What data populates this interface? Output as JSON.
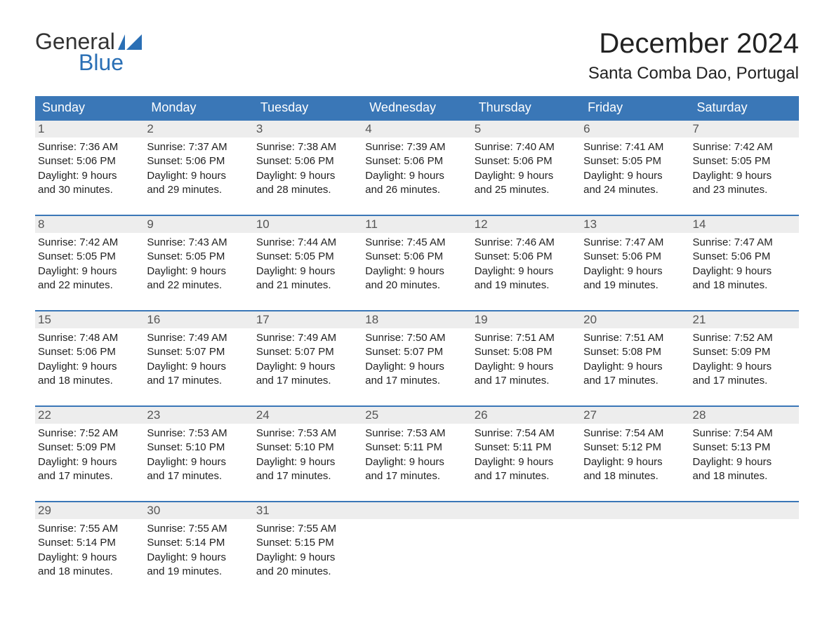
{
  "logo": {
    "word1": "General",
    "word2": "Blue",
    "icon_color": "#2a6fb5",
    "text1_color": "#333333",
    "text2_color": "#2a6fb5"
  },
  "title": "December 2024",
  "location": "Santa Comba Dao, Portugal",
  "header_bg": "#3a77b7",
  "header_fg": "#ffffff",
  "daynum_bg": "#ededed",
  "daynum_fg": "#555555",
  "rule_color": "#3a77b7",
  "body_text_color": "#222222",
  "background_color": "#ffffff",
  "title_fontsize": 40,
  "location_fontsize": 24,
  "header_fontsize": 18,
  "body_fontsize": 15,
  "columns": [
    "Sunday",
    "Monday",
    "Tuesday",
    "Wednesday",
    "Thursday",
    "Friday",
    "Saturday"
  ],
  "weeks": [
    [
      {
        "n": "1",
        "sr": "Sunrise: 7:36 AM",
        "ss": "Sunset: 5:06 PM",
        "d1": "Daylight: 9 hours",
        "d2": "and 30 minutes."
      },
      {
        "n": "2",
        "sr": "Sunrise: 7:37 AM",
        "ss": "Sunset: 5:06 PM",
        "d1": "Daylight: 9 hours",
        "d2": "and 29 minutes."
      },
      {
        "n": "3",
        "sr": "Sunrise: 7:38 AM",
        "ss": "Sunset: 5:06 PM",
        "d1": "Daylight: 9 hours",
        "d2": "and 28 minutes."
      },
      {
        "n": "4",
        "sr": "Sunrise: 7:39 AM",
        "ss": "Sunset: 5:06 PM",
        "d1": "Daylight: 9 hours",
        "d2": "and 26 minutes."
      },
      {
        "n": "5",
        "sr": "Sunrise: 7:40 AM",
        "ss": "Sunset: 5:06 PM",
        "d1": "Daylight: 9 hours",
        "d2": "and 25 minutes."
      },
      {
        "n": "6",
        "sr": "Sunrise: 7:41 AM",
        "ss": "Sunset: 5:05 PM",
        "d1": "Daylight: 9 hours",
        "d2": "and 24 minutes."
      },
      {
        "n": "7",
        "sr": "Sunrise: 7:42 AM",
        "ss": "Sunset: 5:05 PM",
        "d1": "Daylight: 9 hours",
        "d2": "and 23 minutes."
      }
    ],
    [
      {
        "n": "8",
        "sr": "Sunrise: 7:42 AM",
        "ss": "Sunset: 5:05 PM",
        "d1": "Daylight: 9 hours",
        "d2": "and 22 minutes."
      },
      {
        "n": "9",
        "sr": "Sunrise: 7:43 AM",
        "ss": "Sunset: 5:05 PM",
        "d1": "Daylight: 9 hours",
        "d2": "and 22 minutes."
      },
      {
        "n": "10",
        "sr": "Sunrise: 7:44 AM",
        "ss": "Sunset: 5:05 PM",
        "d1": "Daylight: 9 hours",
        "d2": "and 21 minutes."
      },
      {
        "n": "11",
        "sr": "Sunrise: 7:45 AM",
        "ss": "Sunset: 5:06 PM",
        "d1": "Daylight: 9 hours",
        "d2": "and 20 minutes."
      },
      {
        "n": "12",
        "sr": "Sunrise: 7:46 AM",
        "ss": "Sunset: 5:06 PM",
        "d1": "Daylight: 9 hours",
        "d2": "and 19 minutes."
      },
      {
        "n": "13",
        "sr": "Sunrise: 7:47 AM",
        "ss": "Sunset: 5:06 PM",
        "d1": "Daylight: 9 hours",
        "d2": "and 19 minutes."
      },
      {
        "n": "14",
        "sr": "Sunrise: 7:47 AM",
        "ss": "Sunset: 5:06 PM",
        "d1": "Daylight: 9 hours",
        "d2": "and 18 minutes."
      }
    ],
    [
      {
        "n": "15",
        "sr": "Sunrise: 7:48 AM",
        "ss": "Sunset: 5:06 PM",
        "d1": "Daylight: 9 hours",
        "d2": "and 18 minutes."
      },
      {
        "n": "16",
        "sr": "Sunrise: 7:49 AM",
        "ss": "Sunset: 5:07 PM",
        "d1": "Daylight: 9 hours",
        "d2": "and 17 minutes."
      },
      {
        "n": "17",
        "sr": "Sunrise: 7:49 AM",
        "ss": "Sunset: 5:07 PM",
        "d1": "Daylight: 9 hours",
        "d2": "and 17 minutes."
      },
      {
        "n": "18",
        "sr": "Sunrise: 7:50 AM",
        "ss": "Sunset: 5:07 PM",
        "d1": "Daylight: 9 hours",
        "d2": "and 17 minutes."
      },
      {
        "n": "19",
        "sr": "Sunrise: 7:51 AM",
        "ss": "Sunset: 5:08 PM",
        "d1": "Daylight: 9 hours",
        "d2": "and 17 minutes."
      },
      {
        "n": "20",
        "sr": "Sunrise: 7:51 AM",
        "ss": "Sunset: 5:08 PM",
        "d1": "Daylight: 9 hours",
        "d2": "and 17 minutes."
      },
      {
        "n": "21",
        "sr": "Sunrise: 7:52 AM",
        "ss": "Sunset: 5:09 PM",
        "d1": "Daylight: 9 hours",
        "d2": "and 17 minutes."
      }
    ],
    [
      {
        "n": "22",
        "sr": "Sunrise: 7:52 AM",
        "ss": "Sunset: 5:09 PM",
        "d1": "Daylight: 9 hours",
        "d2": "and 17 minutes."
      },
      {
        "n": "23",
        "sr": "Sunrise: 7:53 AM",
        "ss": "Sunset: 5:10 PM",
        "d1": "Daylight: 9 hours",
        "d2": "and 17 minutes."
      },
      {
        "n": "24",
        "sr": "Sunrise: 7:53 AM",
        "ss": "Sunset: 5:10 PM",
        "d1": "Daylight: 9 hours",
        "d2": "and 17 minutes."
      },
      {
        "n": "25",
        "sr": "Sunrise: 7:53 AM",
        "ss": "Sunset: 5:11 PM",
        "d1": "Daylight: 9 hours",
        "d2": "and 17 minutes."
      },
      {
        "n": "26",
        "sr": "Sunrise: 7:54 AM",
        "ss": "Sunset: 5:11 PM",
        "d1": "Daylight: 9 hours",
        "d2": "and 17 minutes."
      },
      {
        "n": "27",
        "sr": "Sunrise: 7:54 AM",
        "ss": "Sunset: 5:12 PM",
        "d1": "Daylight: 9 hours",
        "d2": "and 18 minutes."
      },
      {
        "n": "28",
        "sr": "Sunrise: 7:54 AM",
        "ss": "Sunset: 5:13 PM",
        "d1": "Daylight: 9 hours",
        "d2": "and 18 minutes."
      }
    ],
    [
      {
        "n": "29",
        "sr": "Sunrise: 7:55 AM",
        "ss": "Sunset: 5:14 PM",
        "d1": "Daylight: 9 hours",
        "d2": "and 18 minutes."
      },
      {
        "n": "30",
        "sr": "Sunrise: 7:55 AM",
        "ss": "Sunset: 5:14 PM",
        "d1": "Daylight: 9 hours",
        "d2": "and 19 minutes."
      },
      {
        "n": "31",
        "sr": "Sunrise: 7:55 AM",
        "ss": "Sunset: 5:15 PM",
        "d1": "Daylight: 9 hours",
        "d2": "and 20 minutes."
      },
      null,
      null,
      null,
      null
    ]
  ]
}
